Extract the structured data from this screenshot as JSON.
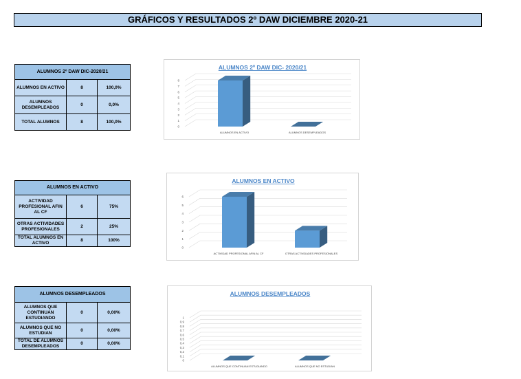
{
  "page_title": "GRÁFICOS Y RESULTADOS 2º DAW DICIEMBRE 2020-21",
  "tables": [
    {
      "header": "ALUMNOS 2º DAW DIC-2020/21",
      "rows": [
        {
          "label": "ALUMNOS EN ACTIVO",
          "count": "8",
          "percent": "100,0%"
        },
        {
          "label": "ALUMNOS DESEMPLEADOS",
          "count": "0",
          "percent": "0,0%"
        },
        {
          "label": "TOTAL ALUMNOS",
          "count": "8",
          "percent": "100,0%"
        }
      ]
    },
    {
      "header": "ALUMNOS EN ACTIVO",
      "rows": [
        {
          "label": "ACTIVIDAD PROFESIONAL AFIN AL CF",
          "count": "6",
          "percent": "75%"
        },
        {
          "label": "OTRAS ACTIVIDADES PROFESIONALES",
          "count": "2",
          "percent": "25%"
        },
        {
          "label": "TOTAL ALUMNOS EN ACTIVO",
          "count": "8",
          "percent": "100%"
        }
      ]
    },
    {
      "header": "ALUMNOS DESEMPLEADOS",
      "rows": [
        {
          "label": "ALUMNOS QUE CONTINUAN ESTUDIANDO",
          "count": "0",
          "percent": "0,00%"
        },
        {
          "label": "ALUMNOS QUE NO ESTUDIAN",
          "count": "0",
          "percent": "0,00%"
        },
        {
          "label": "TOTAL DE ALUMNOS DESEMPLEADOS",
          "count": "0",
          "percent": "0,00%"
        }
      ]
    }
  ],
  "chart_data": [
    {
      "type": "bar",
      "title": "ALUMNOS 2º DAW DIC- 2020/21",
      "categories": [
        "ALUMNOS EN ACTIVO",
        "ALUMNOS DESEMPLEADOS"
      ],
      "values": [
        8,
        0
      ],
      "ylim": [
        0,
        8
      ],
      "yticks": [
        "0",
        "1",
        "2",
        "3",
        "4",
        "5",
        "6",
        "7",
        "8"
      ],
      "grid": true,
      "title_color": "#4a86c8",
      "bar_color": "#5b9bd5"
    },
    {
      "type": "bar",
      "title": "ALUMNOS EN ACTIVO",
      "categories": [
        "ACTIVIDAD PROFESIONAL AFIN AL CF",
        "OTRAS ACTIVIDADES PROFESIONALES"
      ],
      "values": [
        6,
        2
      ],
      "ylim": [
        0,
        6
      ],
      "yticks": [
        "0",
        "1",
        "2",
        "3",
        "4",
        "5",
        "6"
      ],
      "grid": true,
      "title_color": "#4a86c8",
      "bar_color": "#5b9bd5"
    },
    {
      "type": "bar",
      "title": "ALUMNOS DESEMPLEADOS",
      "categories": [
        "ALUMNOS QUE CONTINUAN ESTUDIANDO",
        "ALUMNOS QUE NO ESTUDIAN"
      ],
      "values": [
        0,
        0
      ],
      "ylim": [
        0,
        1
      ],
      "yticks": [
        "0",
        "0,1",
        "0,2",
        "0,3",
        "0,4",
        "0,5",
        "0,6",
        "0,7",
        "0,8",
        "0,9",
        "1"
      ],
      "grid": true,
      "title_color": "#4a86c8",
      "bar_color": "#5b9bd5"
    }
  ]
}
